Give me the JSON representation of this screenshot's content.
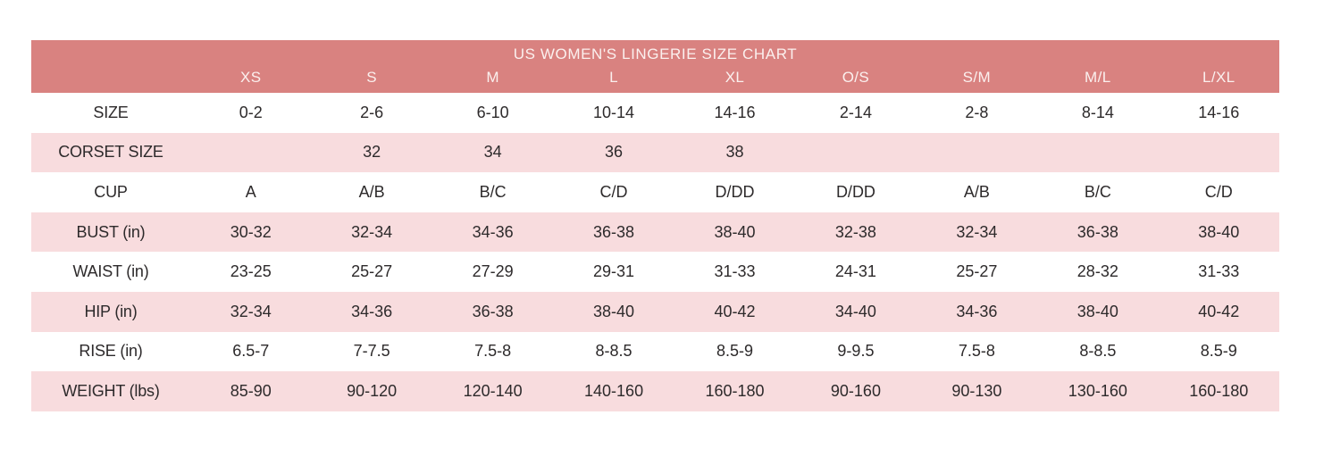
{
  "colors": {
    "header_bg": "#d98280",
    "header_text": "#fbf0ee",
    "stripe_bg": "#f8dcde",
    "body_text": "#2d2a2b",
    "page_bg": "#ffffff"
  },
  "chart_data": {
    "type": "table",
    "title": "US WOMEN'S LINGERIE SIZE CHART",
    "column_headers": [
      "XS",
      "S",
      "M",
      "L",
      "XL",
      "O/S",
      "S/M",
      "M/L",
      "L/XL"
    ],
    "rows": [
      {
        "label": "SIZE",
        "values": [
          "0-2",
          "2-6",
          "6-10",
          "10-14",
          "14-16",
          "2-14",
          "2-8",
          "8-14",
          "14-16"
        ]
      },
      {
        "label": "CORSET SIZE",
        "values": [
          "",
          "32",
          "34",
          "36",
          "38",
          "",
          "",
          "",
          ""
        ]
      },
      {
        "label": "CUP",
        "values": [
          "A",
          "A/B",
          "B/C",
          "C/D",
          "D/DD",
          "D/DD",
          "A/B",
          "B/C",
          "C/D"
        ]
      },
      {
        "label": "BUST (in)",
        "values": [
          "30-32",
          "32-34",
          "34-36",
          "36-38",
          "38-40",
          "32-38",
          "32-34",
          "36-38",
          "38-40"
        ]
      },
      {
        "label": "WAIST (in)",
        "values": [
          "23-25",
          "25-27",
          "27-29",
          "29-31",
          "31-33",
          "24-31",
          "25-27",
          "28-32",
          "31-33"
        ]
      },
      {
        "label": "HIP (in)",
        "values": [
          "32-34",
          "34-36",
          "36-38",
          "38-40",
          "40-42",
          "34-40",
          "34-36",
          "38-40",
          "40-42"
        ]
      },
      {
        "label": "RISE (in)",
        "values": [
          "6.5-7",
          "7-7.5",
          "7.5-8",
          "8-8.5",
          "8.5-9",
          "9-9.5",
          "7.5-8",
          "8-8.5",
          "8.5-9"
        ]
      },
      {
        "label": "WEIGHT (lbs)",
        "values": [
          "85-90",
          "90-120",
          "120-140",
          "140-160",
          "160-180",
          "90-160",
          "90-130",
          "130-160",
          "160-180"
        ]
      }
    ]
  }
}
